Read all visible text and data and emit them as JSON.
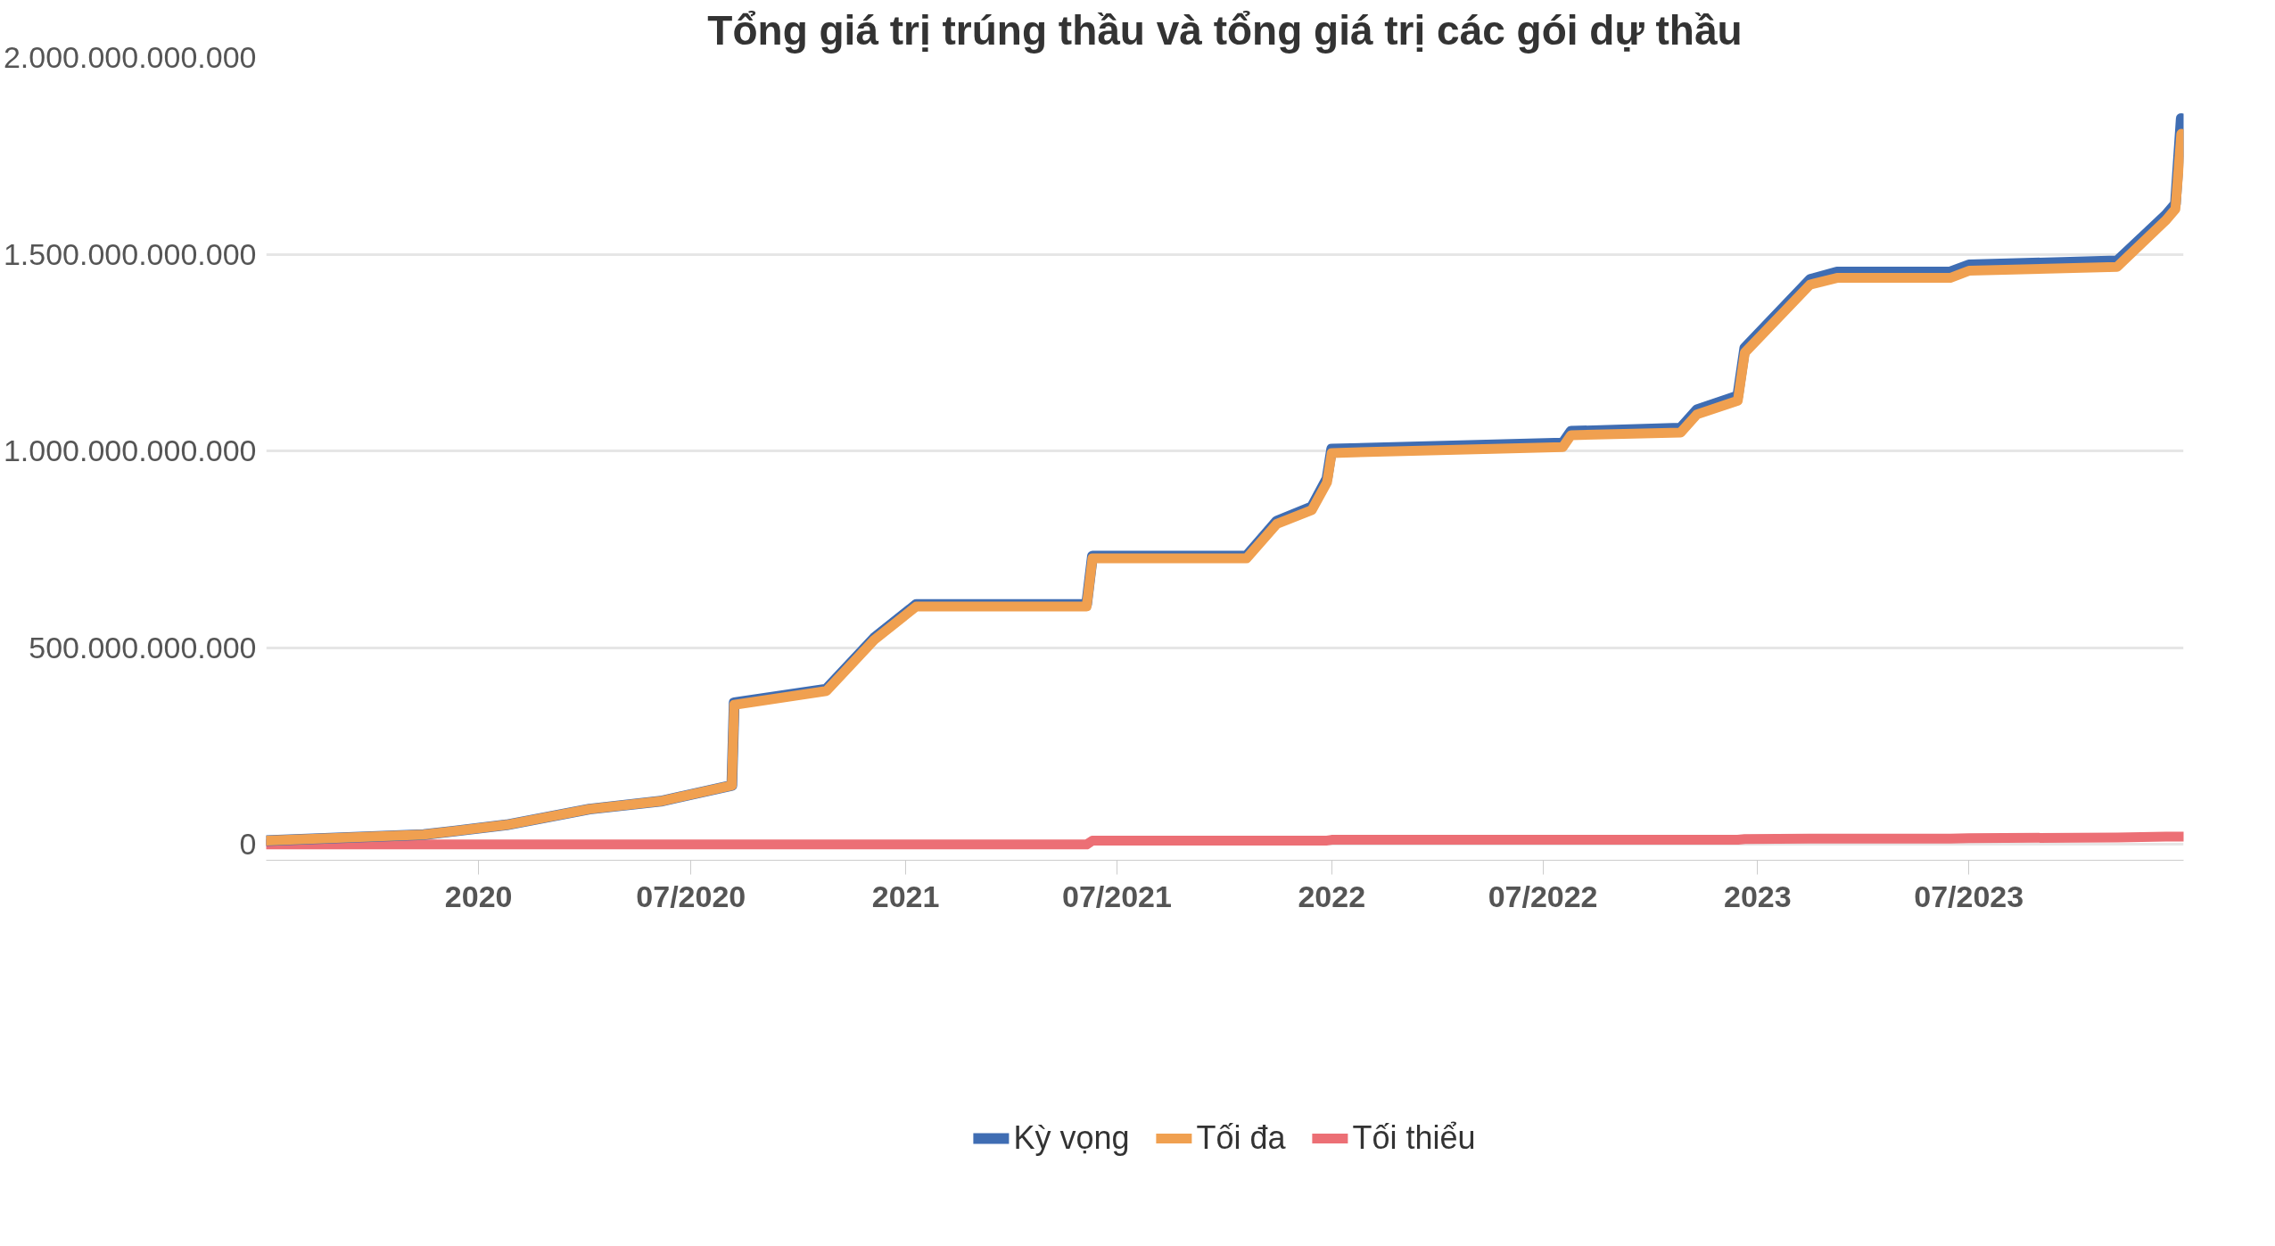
{
  "chart_data": {
    "type": "line",
    "title": "Tổng giá trị trúng thầu và tổng giá trị các gói dự thầu",
    "x": [
      "2019-07-03",
      "2019-11-15",
      "2020-01-25",
      "2020-04-05",
      "2020-06-05",
      "2020-08-05",
      "2020-08-07",
      "2020-10-25",
      "2020-12-05",
      "2021-01-10",
      "2021-06-05",
      "2021-06-10",
      "2021-10-20",
      "2021-11-15",
      "2021-12-15",
      "2021-12-28",
      "2022-01-01",
      "2022-07-18",
      "2022-07-25",
      "2022-10-27",
      "2022-11-10",
      "2022-12-15",
      "2022-12-21",
      "2023-02-15",
      "2023-03-10",
      "2023-06-15",
      "2023-07-01",
      "2023-11-05",
      "2023-12-17",
      "2023-12-25",
      "2023-12-30",
      "2024-01-01"
    ],
    "series": [
      {
        "name": "Kỳ vọng",
        "color": "#3f6db3",
        "values": [
          10000000000,
          25000000000,
          50000000000,
          90000000000,
          110000000000,
          150000000000,
          360000000000,
          395000000000,
          525000000000,
          610000000000,
          610000000000,
          733000000000,
          733000000000,
          822000000000,
          858000000000,
          930000000000,
          1005000000000,
          1020000000000,
          1050000000000,
          1058000000000,
          1105000000000,
          1140000000000,
          1262000000000,
          1436000000000,
          1455000000000,
          1455000000000,
          1473000000000,
          1483000000000,
          1600000000000,
          1628000000000,
          1845000000000,
          1800000000000
        ]
      },
      {
        "name": "Tối đa",
        "color": "#f0a050",
        "values": [
          10000000000,
          25000000000,
          50000000000,
          90000000000,
          110000000000,
          150000000000,
          355000000000,
          390000000000,
          520000000000,
          605000000000,
          605000000000,
          727000000000,
          727000000000,
          815000000000,
          850000000000,
          920000000000,
          995000000000,
          1010000000000,
          1040000000000,
          1047000000000,
          1093000000000,
          1128000000000,
          1250000000000,
          1423000000000,
          1440000000000,
          1440000000000,
          1458000000000,
          1468000000000,
          1587000000000,
          1615000000000,
          1806000000000,
          1790000000000
        ]
      },
      {
        "name": "Tối thiểu",
        "color": "#ec6f75",
        "values": [
          0,
          0,
          0,
          0,
          0,
          0,
          0,
          0,
          0,
          0,
          0,
          10000000000,
          10000000000,
          10000000000,
          10000000000,
          10000000000,
          12000000000,
          12000000000,
          12000000000,
          12000000000,
          12000000000,
          12000000000,
          14000000000,
          15000000000,
          15000000000,
          15000000000,
          16000000000,
          18000000000,
          20000000000,
          20000000000,
          20000000000,
          20000000000
        ]
      }
    ],
    "xlim": [
      "2019-07-03",
      "2024-01-01"
    ],
    "xticks": [
      {
        "value": "2020-01-01",
        "label": "2020"
      },
      {
        "value": "2020-07-01",
        "label": "07/2020"
      },
      {
        "value": "2021-01-01",
        "label": "2021"
      },
      {
        "value": "2021-07-01",
        "label": "07/2021"
      },
      {
        "value": "2022-01-01",
        "label": "2022"
      },
      {
        "value": "2022-07-01",
        "label": "07/2022"
      },
      {
        "value": "2023-01-01",
        "label": "2023"
      },
      {
        "value": "2023-07-01",
        "label": "07/2023"
      }
    ],
    "ylim": [
      -40000000000,
      2000000000000
    ],
    "yticks": [
      {
        "value": 0,
        "label": "0"
      },
      {
        "value": 500000000000,
        "label": "500.000.000.000"
      },
      {
        "value": 1000000000000,
        "label": "1.000.000.000.000"
      },
      {
        "value": 1500000000000,
        "label": "1.500.000.000.000"
      },
      {
        "value": 2000000000000,
        "label": "2.000.000.000.000"
      }
    ],
    "grid": "y",
    "legend": "bottom",
    "marker": "none",
    "line_style": "solid"
  }
}
